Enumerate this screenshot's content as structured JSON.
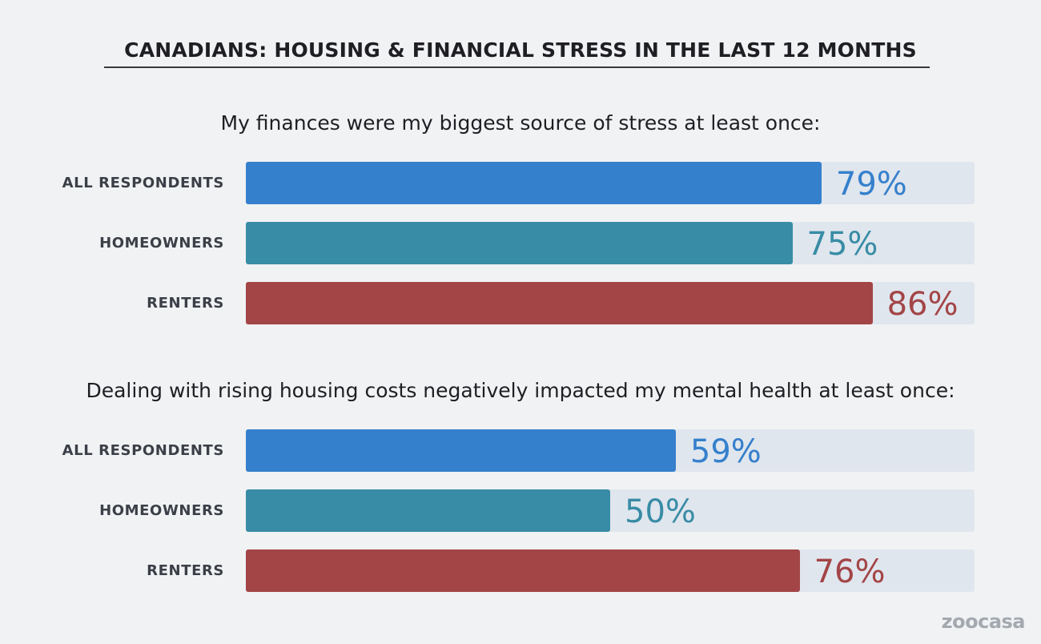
{
  "title": "CANADIANS: HOUSING & FINANCIAL STRESS IN THE LAST 12 MONTHS",
  "watermark": "zoocasa",
  "colors": {
    "background": "#f1f2f4",
    "track": "#e0e6ee",
    "all_respondents": "#3580cc",
    "homeowners": "#388ca5",
    "renters": "#a34547"
  },
  "chart_data": [
    {
      "type": "bar",
      "orientation": "horizontal",
      "title": "My finances were my biggest source of stress at least once:",
      "categories": [
        "ALL RESPONDENTS",
        "HOMEOWNERS",
        "RENTERS"
      ],
      "values": [
        79,
        75,
        86
      ],
      "value_labels": [
        "79%",
        "75%",
        "86%"
      ],
      "unit": "%",
      "xlim": [
        0,
        100
      ],
      "grid": false
    },
    {
      "type": "bar",
      "orientation": "horizontal",
      "title": "Dealing with rising housing costs negatively impacted my mental health at least once:",
      "categories": [
        "ALL RESPONDENTS",
        "HOMEOWNERS",
        "RENTERS"
      ],
      "values": [
        59,
        50,
        76
      ],
      "value_labels": [
        "59%",
        "50%",
        "76%"
      ],
      "unit": "%",
      "xlim": [
        0,
        100
      ],
      "grid": false
    }
  ]
}
